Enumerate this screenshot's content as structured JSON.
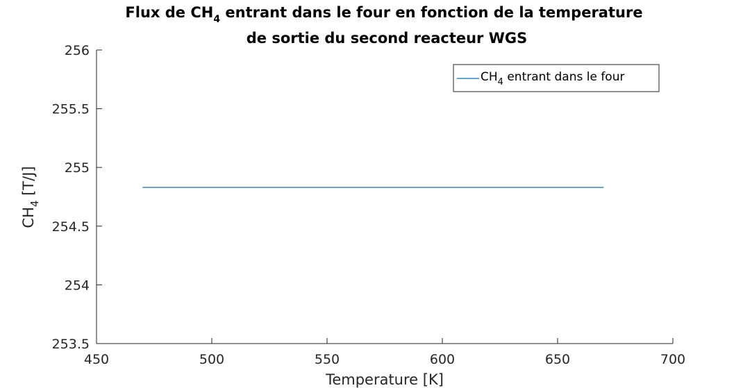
{
  "chart_data": {
    "type": "line",
    "title_line1_pre": "Flux de CH",
    "title_line1_sub": "4",
    "title_line1_post": " entrant dans le four en fonction de la temperature",
    "title_line2": "de sortie du second reacteur WGS",
    "xlabel": "Temperature [K]",
    "ylabel_main": "CH",
    "ylabel_sub": "4",
    "ylabel_post": "  [T/J]",
    "xlim": [
      450,
      700
    ],
    "ylim": [
      253.5,
      256
    ],
    "xticks": [
      450,
      500,
      550,
      600,
      650,
      700
    ],
    "yticks": [
      253.5,
      254,
      254.5,
      255,
      255.5,
      256
    ],
    "xtick_labels": [
      "450",
      "500",
      "550",
      "600",
      "650",
      "700"
    ],
    "ytick_labels": [
      "253.5",
      "254",
      "254.5",
      "255",
      "255.5",
      "256"
    ],
    "legend_placement": "top-right",
    "series": [
      {
        "name_main": "CH",
        "name_sub": "4",
        "name_post": " entrant dans le four",
        "color": "#0072BD",
        "x": [
          470,
          670
        ],
        "y": [
          254.83,
          254.83
        ]
      }
    ]
  }
}
